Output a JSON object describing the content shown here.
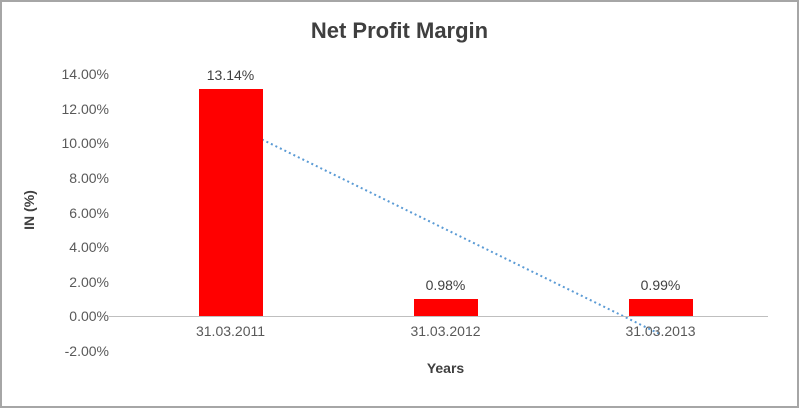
{
  "chart_data": {
    "type": "bar",
    "title": "Net Profit Margin",
    "xlabel": "Years",
    "ylabel": "IN (%)",
    "categories": [
      "31.03.2011",
      "31.03.2012",
      "31.03.2013"
    ],
    "values": [
      13.14,
      0.98,
      0.99
    ],
    "data_labels": [
      "13.14%",
      "0.98%",
      "0.99%"
    ],
    "ylim": [
      -2,
      14
    ],
    "ytick_step": 2,
    "yticks": [
      {
        "value": 14,
        "label": "14.00%"
      },
      {
        "value": 12,
        "label": "12.00%"
      },
      {
        "value": 10,
        "label": "10.00%"
      },
      {
        "value": 8,
        "label": "8.00%"
      },
      {
        "value": 6,
        "label": "6.00%"
      },
      {
        "value": 4,
        "label": "4.00%"
      },
      {
        "value": 2,
        "label": "2.00%"
      },
      {
        "value": 0,
        "label": "0.00%"
      },
      {
        "value": -2,
        "label": "-2.00%"
      }
    ],
    "grid": false,
    "legend": "none",
    "trendline": {
      "type": "linear",
      "style": "dotted",
      "start_value": 11.11,
      "end_value": -1.04
    },
    "colors": {
      "bar": "#ff0000",
      "trendline": "#5b9bd5",
      "axis_line": "#bfbfbf",
      "title_text": "#3f3f3f",
      "axis_text": "#595959",
      "label_text": "#404040"
    }
  }
}
